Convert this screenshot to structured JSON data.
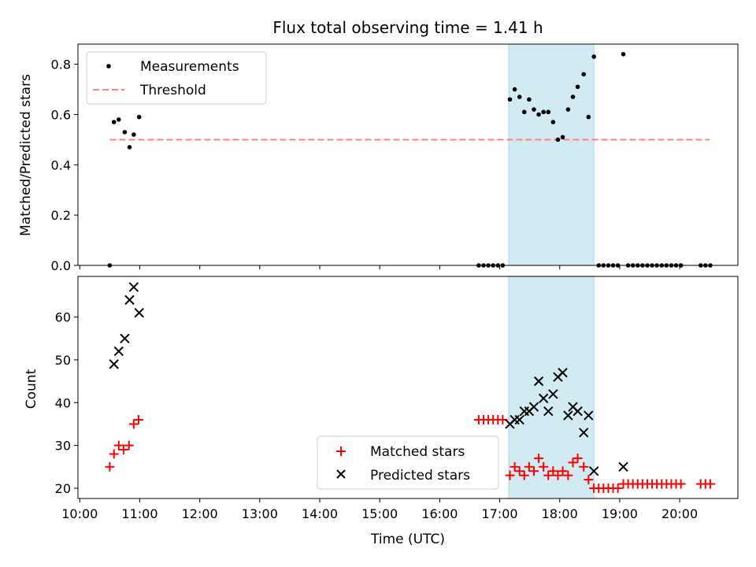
{
  "figure": {
    "title": "Flux total observing time = 1.41 h",
    "xlabel": "Time (UTC)",
    "xticks": [
      "10:00",
      "11:00",
      "12:00",
      "13:00",
      "14:00",
      "15:00",
      "16:00",
      "17:00",
      "18:00",
      "19:00",
      "20:00"
    ]
  },
  "colors": {
    "measurement": "#000000",
    "threshold": "#ff7f7f",
    "matched": "#ff0000",
    "predicted": "#000000",
    "shade": "#add8e6"
  },
  "chart_data": [
    {
      "type": "scatter",
      "panel": "top",
      "title": "Flux total observing time = 1.41 h",
      "xlabel": "",
      "ylabel": "Matched/Predicted stars",
      "x_unit": "hours UTC",
      "xlim": [
        9.97,
        20.97
      ],
      "ylim": [
        0,
        0.88
      ],
      "yticks": [
        "0.0",
        "0.2",
        "0.4",
        "0.6",
        "0.8"
      ],
      "legend_position": "top-left",
      "grid": false,
      "shaded_span": [
        17.15,
        18.57
      ],
      "threshold": {
        "name": "Threshold",
        "value": 0.5,
        "x": [
          10.5,
          20.5
        ],
        "style": "dashed"
      },
      "series": [
        {
          "name": "Measurements",
          "marker": "dot",
          "points": [
            [
              10.5,
              0.0
            ],
            [
              10.57,
              0.57
            ],
            [
              10.65,
              0.58
            ],
            [
              10.75,
              0.53
            ],
            [
              10.83,
              0.47
            ],
            [
              10.9,
              0.52
            ],
            [
              10.99,
              0.59
            ],
            [
              16.65,
              0.0
            ],
            [
              16.73,
              0.0
            ],
            [
              16.81,
              0.0
            ],
            [
              16.89,
              0.0
            ],
            [
              16.97,
              0.0
            ],
            [
              17.05,
              0.0
            ],
            [
              17.17,
              0.66
            ],
            [
              17.25,
              0.7
            ],
            [
              17.33,
              0.67
            ],
            [
              17.41,
              0.61
            ],
            [
              17.49,
              0.66
            ],
            [
              17.57,
              0.62
            ],
            [
              17.65,
              0.6
            ],
            [
              17.73,
              0.61
            ],
            [
              17.81,
              0.61
            ],
            [
              17.89,
              0.57
            ],
            [
              17.97,
              0.5
            ],
            [
              18.05,
              0.51
            ],
            [
              18.14,
              0.62
            ],
            [
              18.22,
              0.67
            ],
            [
              18.3,
              0.71
            ],
            [
              18.4,
              0.76
            ],
            [
              18.48,
              0.59
            ],
            [
              18.57,
              0.83
            ],
            [
              18.65,
              0.0
            ],
            [
              18.73,
              0.0
            ],
            [
              18.81,
              0.0
            ],
            [
              18.89,
              0.0
            ],
            [
              18.97,
              0.0
            ],
            [
              19.06,
              0.84
            ],
            [
              19.14,
              0.0
            ],
            [
              19.22,
              0.0
            ],
            [
              19.3,
              0.0
            ],
            [
              19.38,
              0.0
            ],
            [
              19.46,
              0.0
            ],
            [
              19.54,
              0.0
            ],
            [
              19.62,
              0.0
            ],
            [
              19.7,
              0.0
            ],
            [
              19.78,
              0.0
            ],
            [
              19.86,
              0.0
            ],
            [
              19.94,
              0.0
            ],
            [
              20.02,
              0.0
            ],
            [
              20.35,
              0.0
            ],
            [
              20.43,
              0.0
            ],
            [
              20.51,
              0.0
            ]
          ]
        }
      ]
    },
    {
      "type": "scatter",
      "panel": "bottom",
      "xlabel": "Time (UTC)",
      "ylabel": "Count",
      "x_unit": "hours UTC",
      "xlim": [
        9.97,
        20.97
      ],
      "ylim": [
        17.6,
        69.5
      ],
      "yticks": [
        "20",
        "30",
        "40",
        "50",
        "60"
      ],
      "legend_position": "bottom-center",
      "grid": false,
      "shaded_span": [
        17.15,
        18.57
      ],
      "series": [
        {
          "name": "Matched stars",
          "marker": "plus",
          "points": [
            [
              10.5,
              25
            ],
            [
              10.57,
              28
            ],
            [
              10.65,
              30
            ],
            [
              10.73,
              29
            ],
            [
              10.82,
              30
            ],
            [
              10.9,
              35
            ],
            [
              10.98,
              36
            ],
            [
              16.65,
              36
            ],
            [
              16.73,
              36
            ],
            [
              16.81,
              36
            ],
            [
              16.89,
              36
            ],
            [
              16.97,
              36
            ],
            [
              17.05,
              36
            ],
            [
              17.17,
              23
            ],
            [
              17.25,
              25
            ],
            [
              17.33,
              24
            ],
            [
              17.41,
              23
            ],
            [
              17.49,
              25
            ],
            [
              17.57,
              24
            ],
            [
              17.65,
              27
            ],
            [
              17.73,
              25
            ],
            [
              17.81,
              23
            ],
            [
              17.89,
              24
            ],
            [
              17.97,
              23
            ],
            [
              18.05,
              24
            ],
            [
              18.14,
              23
            ],
            [
              18.22,
              26
            ],
            [
              18.3,
              27
            ],
            [
              18.4,
              25
            ],
            [
              18.48,
              22
            ],
            [
              18.57,
              20
            ],
            [
              18.65,
              20
            ],
            [
              18.73,
              20
            ],
            [
              18.81,
              20
            ],
            [
              18.89,
              20
            ],
            [
              18.97,
              20
            ],
            [
              19.06,
              21
            ],
            [
              19.14,
              21
            ],
            [
              19.22,
              21
            ],
            [
              19.3,
              21
            ],
            [
              19.38,
              21
            ],
            [
              19.46,
              21
            ],
            [
              19.54,
              21
            ],
            [
              19.62,
              21
            ],
            [
              19.7,
              21
            ],
            [
              19.78,
              21
            ],
            [
              19.86,
              21
            ],
            [
              19.94,
              21
            ],
            [
              20.02,
              21
            ],
            [
              20.35,
              21
            ],
            [
              20.43,
              21
            ],
            [
              20.51,
              21
            ]
          ]
        },
        {
          "name": "Predicted stars",
          "marker": "x",
          "points": [
            [
              10.57,
              49
            ],
            [
              10.65,
              52
            ],
            [
              10.75,
              55
            ],
            [
              10.83,
              64
            ],
            [
              10.9,
              67
            ],
            [
              10.99,
              61
            ],
            [
              17.17,
              35
            ],
            [
              17.25,
              36
            ],
            [
              17.33,
              36
            ],
            [
              17.41,
              38
            ],
            [
              17.49,
              38
            ],
            [
              17.57,
              39
            ],
            [
              17.65,
              45
            ],
            [
              17.73,
              41
            ],
            [
              17.81,
              38
            ],
            [
              17.89,
              42
            ],
            [
              17.97,
              46
            ],
            [
              18.05,
              47
            ],
            [
              18.14,
              37
            ],
            [
              18.22,
              39
            ],
            [
              18.3,
              38
            ],
            [
              18.4,
              33
            ],
            [
              18.48,
              37
            ],
            [
              18.57,
              24
            ],
            [
              19.06,
              25
            ]
          ]
        }
      ]
    }
  ]
}
